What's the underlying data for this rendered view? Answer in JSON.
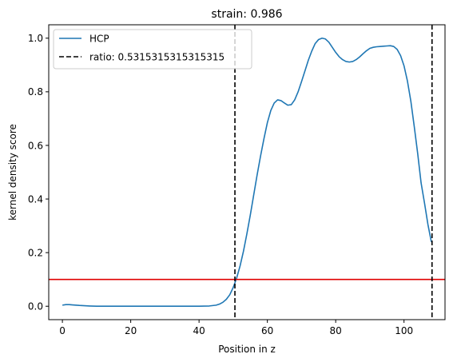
{
  "chart_data": {
    "type": "line",
    "title": "strain: 0.986",
    "xlabel": "Position in z",
    "ylabel": "kernel density score",
    "xlim": [
      -4,
      112
    ],
    "ylim": [
      -0.05,
      1.05
    ],
    "xticks": [
      0,
      20,
      40,
      60,
      80,
      100
    ],
    "yticks": [
      0.0,
      0.2,
      0.4,
      0.6,
      0.8,
      1.0
    ],
    "xtick_labels": [
      "0",
      "20",
      "40",
      "60",
      "80",
      "100"
    ],
    "ytick_labels": [
      "0.0",
      "0.2",
      "0.4",
      "0.6",
      "0.8",
      "1.0"
    ],
    "grid": false,
    "legend_position": "upper-left",
    "series": [
      {
        "name": "HCP",
        "color": "#1f77b4",
        "style": "solid",
        "x": [
          0,
          1,
          2,
          3,
          5,
          8,
          10,
          15,
          20,
          25,
          30,
          35,
          40,
          43,
          45,
          46,
          47,
          48,
          49,
          50,
          51,
          52,
          53,
          54,
          55,
          56,
          57,
          58,
          59,
          60,
          61,
          62,
          63,
          64,
          65,
          66,
          67,
          68,
          69,
          70,
          71,
          72,
          73,
          74,
          75,
          76,
          77,
          78,
          79,
          80,
          81,
          82,
          83,
          84,
          85,
          86,
          87,
          88,
          89,
          90,
          91,
          92,
          93,
          94,
          95,
          96,
          97,
          98,
          99,
          100,
          101,
          102,
          103,
          104,
          105,
          106,
          107,
          108
        ],
        "y": [
          0.004,
          0.006,
          0.006,
          0.005,
          0.003,
          0.001,
          0.0,
          0.0,
          0.0,
          0.0,
          0.0,
          0.0,
          0.0,
          0.001,
          0.004,
          0.008,
          0.015,
          0.026,
          0.043,
          0.07,
          0.105,
          0.15,
          0.205,
          0.27,
          0.34,
          0.415,
          0.49,
          0.56,
          0.625,
          0.685,
          0.73,
          0.758,
          0.77,
          0.767,
          0.758,
          0.75,
          0.752,
          0.77,
          0.8,
          0.838,
          0.878,
          0.918,
          0.952,
          0.98,
          0.995,
          1.0,
          0.997,
          0.985,
          0.966,
          0.947,
          0.931,
          0.92,
          0.913,
          0.911,
          0.913,
          0.92,
          0.93,
          0.942,
          0.953,
          0.962,
          0.966,
          0.968,
          0.969,
          0.97,
          0.971,
          0.972,
          0.969,
          0.958,
          0.935,
          0.897,
          0.84,
          0.765,
          0.67,
          0.57,
          0.46,
          0.385,
          0.305,
          0.24
        ]
      },
      {
        "name": "ratio: 0.5315315315315315",
        "color": "#000000",
        "style": "dashed",
        "vlines_x": [
          50.5,
          108.2
        ]
      }
    ],
    "hline": {
      "y": 0.1,
      "color": "#e00000"
    }
  }
}
